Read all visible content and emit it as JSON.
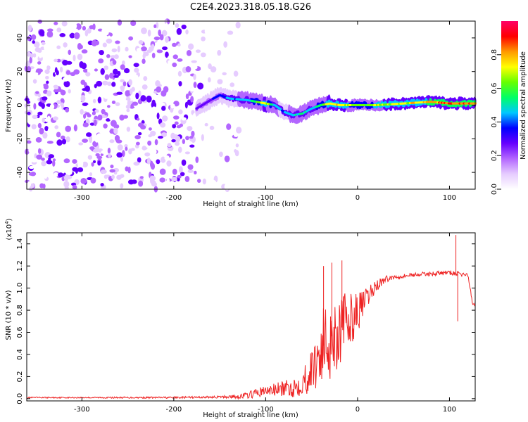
{
  "title": "C2E4.2023.318.05.18.G26",
  "chart_data": [
    {
      "type": "heatmap",
      "xlabel": "Height of straight line (km)",
      "ylabel": "Frequency (Hz)",
      "xlim": [
        -360,
        128
      ],
      "ylim": [
        -50,
        50
      ],
      "xticks": [
        -300,
        -200,
        -100,
        0,
        100
      ],
      "xtick_labels": [
        "-300",
        "-200",
        "-100",
        "0",
        "100"
      ],
      "yticks": [
        -40,
        -20,
        0,
        20,
        40
      ],
      "ytick_labels": [
        "-40",
        "-20",
        "0",
        "20",
        "40"
      ],
      "colorbar": {
        "label": "Normalized spectral amplitude",
        "range": [
          0,
          1
        ],
        "ticks": [
          0.0,
          0.2,
          0.4,
          0.6,
          0.8
        ],
        "tick_labels": [
          "0.0",
          "0.2",
          "0.4",
          "0.6",
          "0.8"
        ],
        "colors": [
          "#ffffff",
          "#e6ccff",
          "#b366ff",
          "#6600ff",
          "#0000ff",
          "#00c8ff",
          "#00ff66",
          "#66ff00",
          "#ffff00",
          "#ff9900",
          "#ff0000",
          "#ff0066"
        ]
      },
      "ridge": {
        "x": [
          -175,
          -160,
          -150,
          -140,
          -120,
          -100,
          -90,
          -80,
          -70,
          -60,
          -50,
          -40,
          -30,
          -20,
          -10,
          0,
          20,
          50,
          80,
          100,
          128
        ],
        "y": [
          -2,
          3,
          6,
          4,
          3,
          1,
          0,
          -4,
          -6,
          -5,
          -2,
          0,
          1,
          0,
          0,
          0,
          0,
          1,
          2,
          1,
          1
        ],
        "amp": [
          0.3,
          0.35,
          0.4,
          0.45,
          0.5,
          0.75,
          0.5,
          0.45,
          0.5,
          0.55,
          0.5,
          0.6,
          0.75,
          0.8,
          0.7,
          0.65,
          0.7,
          0.75,
          0.85,
          0.9,
          0.85
        ]
      },
      "noise_region": {
        "x_from": -360,
        "x_to": -125,
        "amp_max": 0.3
      },
      "grid": false
    },
    {
      "type": "line",
      "xlabel": "Height of straight line (km)",
      "ylabel": "SNR (10 * v/v)",
      "yunit": "(x10^4)",
      "xlim": [
        -360,
        128
      ],
      "ylim": [
        -0.02,
        1.5
      ],
      "xticks": [
        -300,
        -200,
        -100,
        0,
        100
      ],
      "xtick_labels": [
        "-300",
        "-200",
        "-100",
        "0",
        "100"
      ],
      "yticks": [
        0.0,
        0.2,
        0.4,
        0.6,
        0.8,
        1.0,
        1.2,
        1.4
      ],
      "ytick_labels": [
        "0.0",
        "0.2",
        "0.4",
        "0.6",
        "0.8",
        "1.0",
        "1.2",
        "1.4"
      ],
      "series": [
        {
          "color": "#ee2222",
          "x": [
            -360,
            -300,
            -200,
            -150,
            -130,
            -120,
            -110,
            -100,
            -90,
            -80,
            -70,
            -60,
            -50,
            -45,
            -40,
            -30,
            -20,
            -10,
            0,
            10,
            20,
            30,
            40,
            60,
            80,
            100,
            108,
            120,
            125,
            128
          ],
          "y": [
            0.01,
            0.01,
            0.01,
            0.015,
            0.02,
            0.03,
            0.05,
            0.07,
            0.08,
            0.09,
            0.1,
            0.15,
            0.25,
            0.35,
            0.45,
            0.55,
            0.62,
            0.7,
            0.78,
            0.9,
            1.02,
            1.08,
            1.1,
            1.12,
            1.13,
            1.14,
            1.13,
            1.12,
            0.86,
            0.86
          ],
          "noise": [
            0.006,
            0.006,
            0.008,
            0.01,
            0.02,
            0.03,
            0.04,
            0.05,
            0.06,
            0.07,
            0.09,
            0.12,
            0.2,
            0.28,
            0.35,
            0.4,
            0.35,
            0.25,
            0.18,
            0.1,
            0.06,
            0.03,
            0.02,
            0.02,
            0.02,
            0.02,
            0.02,
            0.02,
            0.02,
            0.02
          ],
          "spikes": [
            {
              "x": -37,
              "y": 1.2
            },
            {
              "x": -28,
              "y": 1.23
            },
            {
              "x": -17,
              "y": 1.25
            },
            {
              "x": 107,
              "y": 1.48
            },
            {
              "x": 109,
              "y": 0.7
            }
          ]
        }
      ],
      "grid": false
    }
  ]
}
